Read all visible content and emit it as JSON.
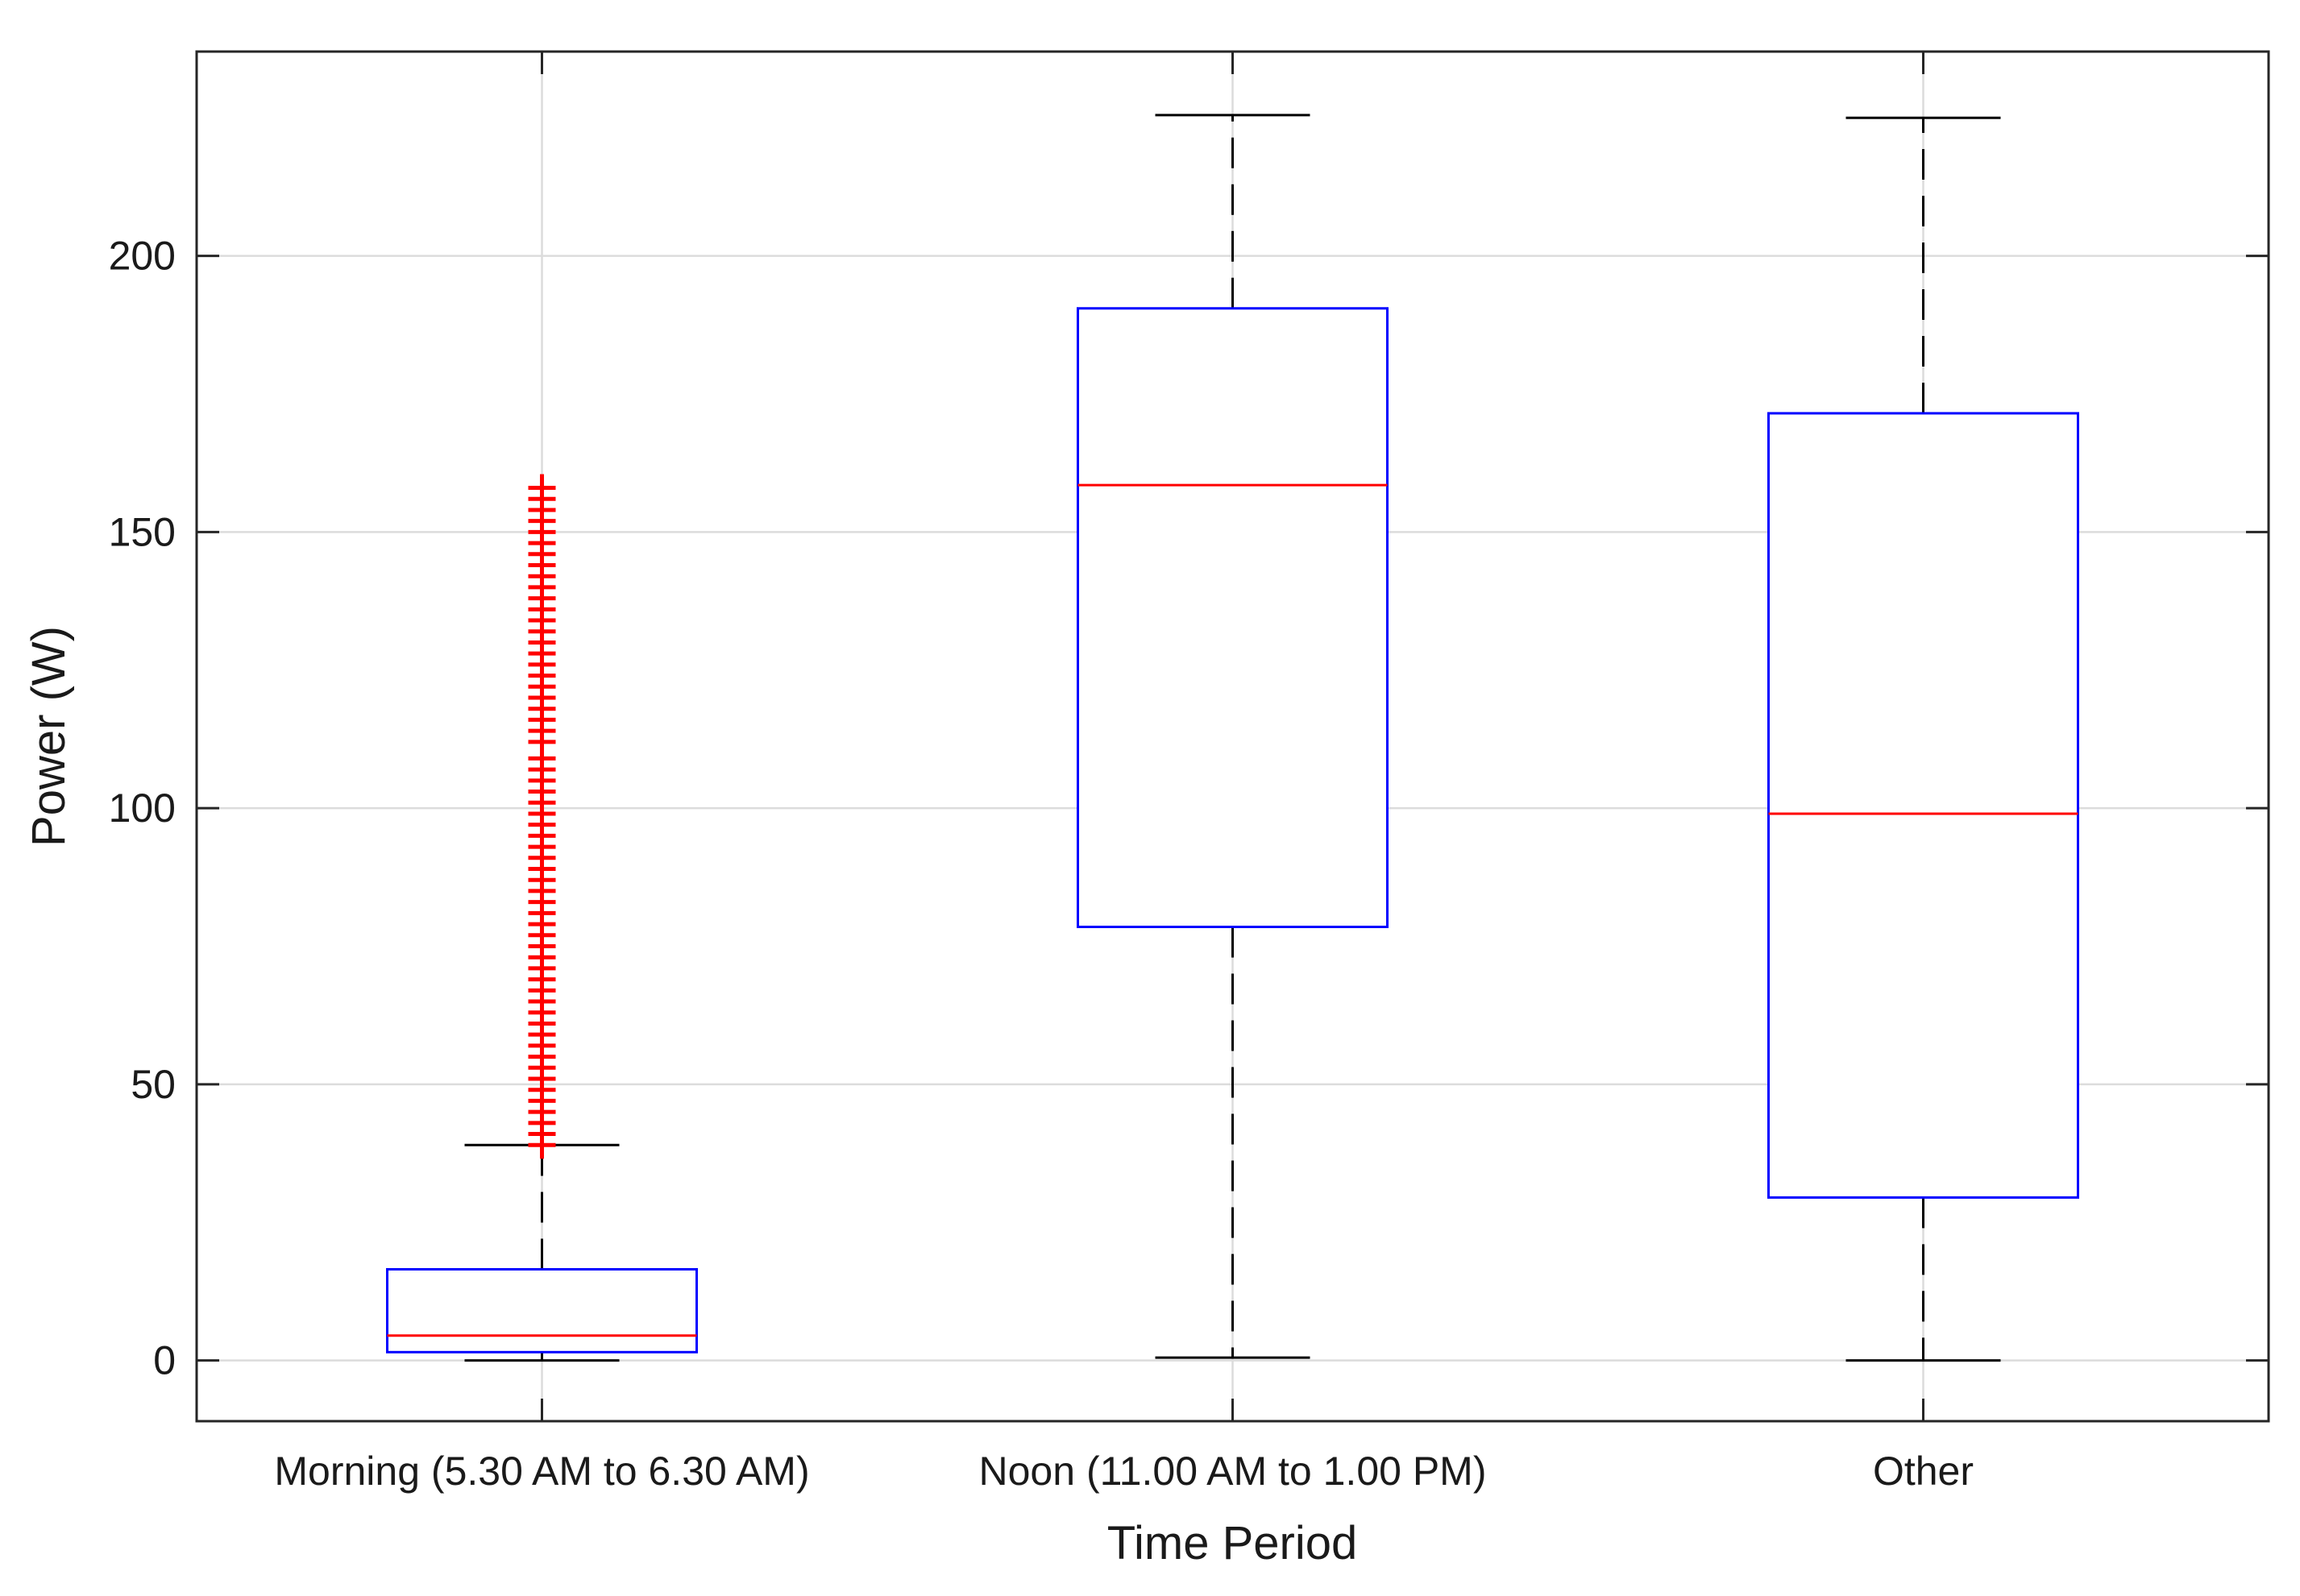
{
  "chart_data": {
    "type": "boxplot",
    "title": "",
    "xlabel": "Time Period",
    "ylabel": "Power (W)",
    "ylim": [
      -11,
      237
    ],
    "yticks": [
      0,
      50,
      100,
      150,
      200
    ],
    "grid": true,
    "categories": [
      "Morning (5.30 AM to 6.30 AM)",
      "Noon (11.00 AM to 1.00 PM)",
      "Other"
    ],
    "boxes": [
      {
        "category": "Morning (5.30 AM to 6.30 AM)",
        "whisker_low": 0,
        "q1": 1.5,
        "median": 4.5,
        "q3": 16.5,
        "whisker_high": 39,
        "outliers": [
          39,
          41,
          43,
          45,
          47,
          49,
          51,
          53,
          55,
          57,
          59,
          61,
          63,
          65,
          67,
          69,
          71,
          73,
          75,
          77,
          79,
          81,
          83,
          85,
          87,
          89,
          91,
          93,
          95,
          97,
          99,
          101,
          103,
          105,
          107,
          109,
          112,
          114,
          116,
          118,
          120,
          122,
          124,
          126,
          128,
          130,
          132,
          134,
          136,
          138,
          140,
          142,
          144,
          146,
          148,
          150,
          152,
          154,
          156,
          158
        ]
      },
      {
        "category": "Noon (11.00 AM to 1.00 PM)",
        "whisker_low": 0.5,
        "q1": 78.5,
        "median": 158.5,
        "q3": 190.5,
        "whisker_high": 225.5,
        "outliers": []
      },
      {
        "category": "Other",
        "whisker_low": 0,
        "q1": 29.5,
        "median": 99,
        "q3": 171.5,
        "whisker_high": 225,
        "outliers": []
      }
    ],
    "colors": {
      "box": "#0000ff",
      "median": "#ff0000",
      "outlier": "#ff0000",
      "whisker": "#000000",
      "grid": "#dcdcdc",
      "axes": "#262626"
    }
  }
}
